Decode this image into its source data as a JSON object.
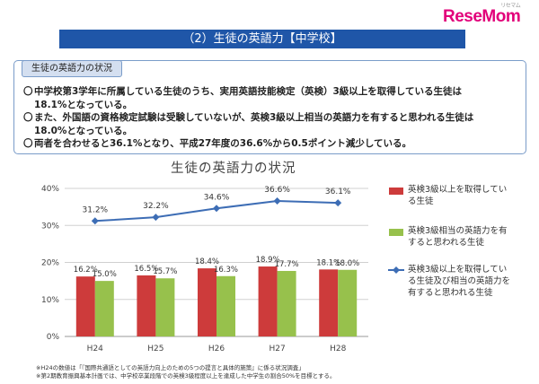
{
  "brand": {
    "logo": "ReseMom",
    "logo_sub": "リセマム"
  },
  "header": {
    "title": "（2）生徒の英語力【中学校】"
  },
  "summary": {
    "label": "生徒の英語力の状況",
    "items": [
      {
        "mark": "〇",
        "text": "中学校第3学年に所属している生徒のうち、実用英語技能検定（英検）3級以上を取得している生徒は"
      },
      {
        "mark": "",
        "text": "18.1%となっている。"
      },
      {
        "mark": "〇",
        "text": "また、外国語の資格検定試験は受験していないが、英検3級以上相当の英語力を有すると思われる生徒は"
      },
      {
        "mark": "",
        "text": "18.0%となっている。"
      },
      {
        "mark": "〇",
        "text": "両者を合わせると36.1%となり、平成27年度の36.6%から0.5ポイント減少している。"
      }
    ]
  },
  "chart_data": {
    "type": "bar",
    "title": "生徒の英語力の状況",
    "categories": [
      "H24",
      "H25",
      "H26",
      "H27",
      "H28"
    ],
    "ylim": [
      0,
      40
    ],
    "yticks": [
      "0%",
      "10%",
      "20%",
      "30%",
      "40%"
    ],
    "grid": true,
    "legend_position": "right",
    "series": [
      {
        "name": "英検3級以上を取得している生徒",
        "kind": "bar",
        "color": "#cd3b3b",
        "values": [
          16.2,
          16.5,
          18.4,
          18.9,
          18.1
        ],
        "labels": [
          "16.2%",
          "16.5%",
          "18.4%",
          "18.9%",
          "18.1%"
        ]
      },
      {
        "name": "英検3級相当の英語力を有すると思われる生徒",
        "kind": "bar",
        "color": "#97c14c",
        "values": [
          15.0,
          15.7,
          16.3,
          17.7,
          18.0
        ],
        "labels": [
          "15.0%",
          "15.7%",
          "16.3%",
          "17.7%",
          "18.0%"
        ]
      },
      {
        "name": "英検3級以上を取得している生徒及び相当の英語力を有すると思われる生徒",
        "kind": "line",
        "color": "#3d6db5",
        "values": [
          31.2,
          32.2,
          34.6,
          36.6,
          36.1
        ],
        "labels": [
          "31.2%",
          "32.2%",
          "34.6%",
          "36.6%",
          "36.1%"
        ]
      }
    ]
  },
  "legend": [
    "英検3級以上を取得している生徒",
    "英検3級相当の英語力を有すると思われる生徒",
    "英検3級以上を取得している生徒及び相当の英語力を有すると思われる生徒"
  ],
  "notes": [
    "※H24の数値は「『国際共通語としての英語力向上のための5つの提言と具体的施策』に係る状況調査」",
    "※第2期教育振興基本計画では、中学校卒業段階での英検3級程度以上を達成した中学生の割合50%を目標とする。"
  ]
}
